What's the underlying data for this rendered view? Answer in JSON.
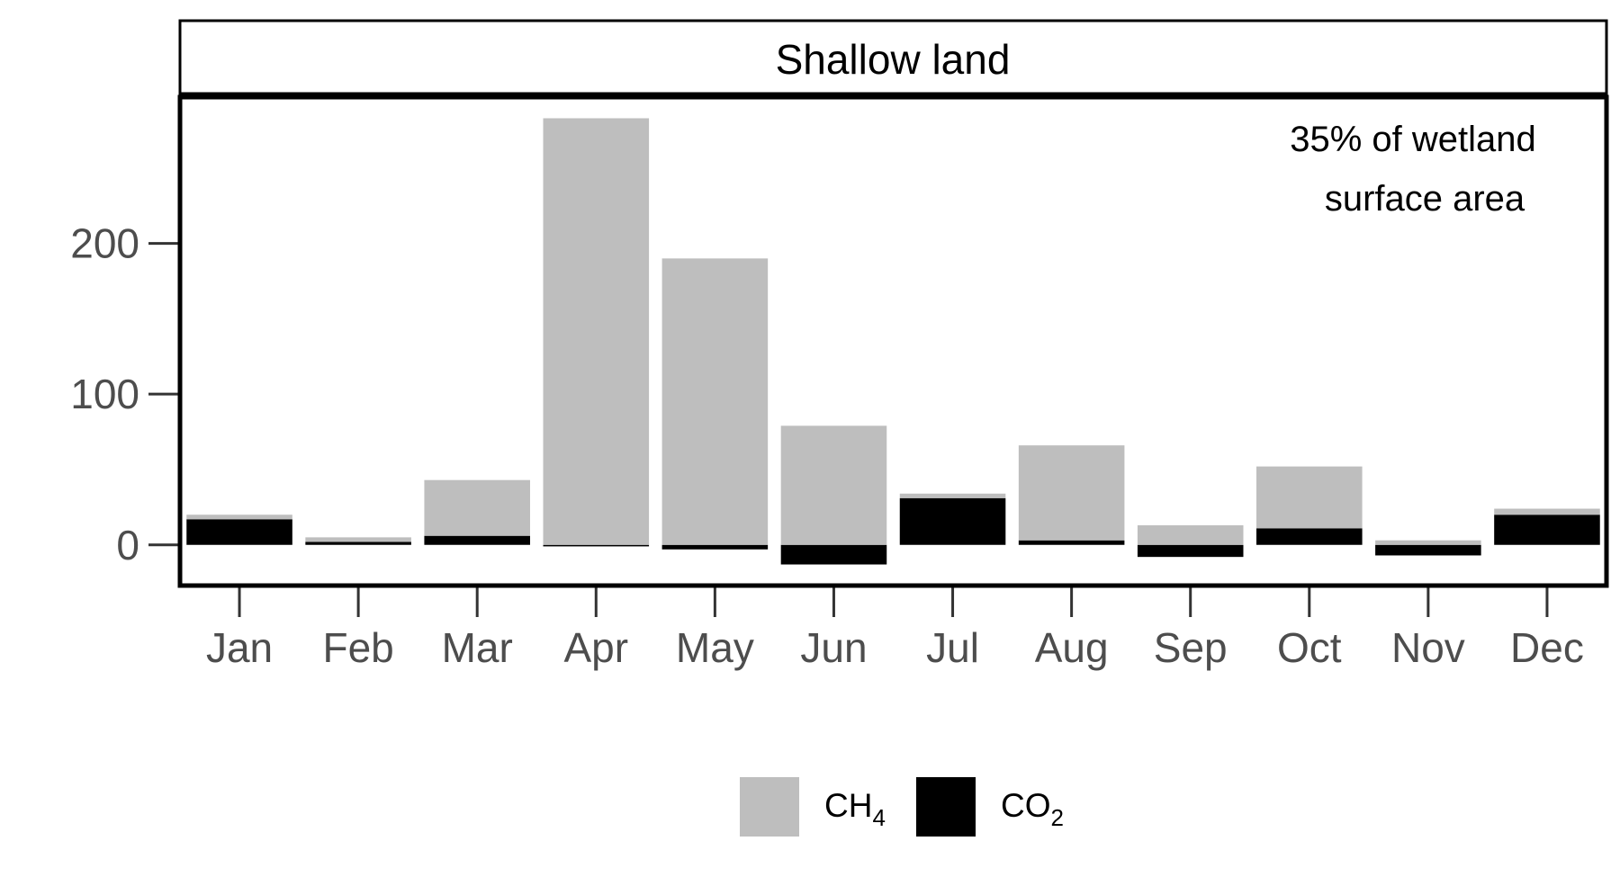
{
  "chart_data": {
    "type": "bar",
    "stacked": true,
    "facet_title": "Shallow land",
    "annotation": [
      "35% of wetland",
      "surface area"
    ],
    "categories": [
      "Jan",
      "Feb",
      "Mar",
      "Apr",
      "May",
      "Jun",
      "Jul",
      "Aug",
      "Sep",
      "Oct",
      "Nov",
      "Dec"
    ],
    "series": [
      {
        "name": "CH4",
        "label_main": "CH",
        "label_sub": "4",
        "color": "#bebebe",
        "values": [
          3,
          3,
          37,
          283,
          190,
          79,
          3,
          63,
          13,
          41,
          3,
          4
        ]
      },
      {
        "name": "CO2",
        "label_main": "CO",
        "label_sub": "2",
        "color": "#000000",
        "values": [
          17,
          2,
          6,
          -1,
          -3,
          -13,
          31,
          3,
          -8,
          11,
          -7,
          20
        ]
      }
    ],
    "yticks": [
      0,
      100,
      200
    ],
    "ylim": [
      -27,
      297
    ],
    "xlabel": "",
    "ylabel": "",
    "grid": false,
    "legend_position": "bottom"
  }
}
